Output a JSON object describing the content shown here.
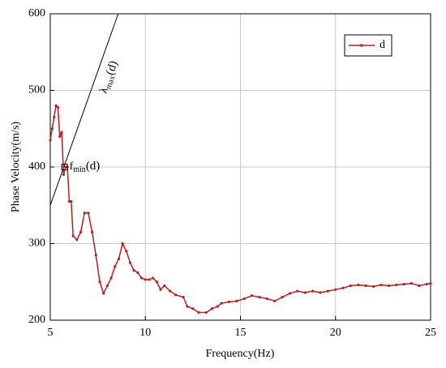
{
  "chart_data": {
    "type": "line",
    "x_label": "Frequency(Hz)",
    "y_label": "Phase Velocity(m/s)",
    "xlim": [
      5,
      25
    ],
    "xticks": [
      5,
      10,
      15,
      20,
      25
    ],
    "ylim": [
      200,
      600
    ],
    "yticks": [
      200,
      300,
      400,
      500,
      600
    ],
    "grid": true,
    "legend": "upper right",
    "x": [
      5.0,
      5.1,
      5.2,
      5.3,
      5.4,
      5.5,
      5.6,
      5.7,
      5.8,
      5.9,
      6.0,
      6.1,
      6.2,
      6.4,
      6.6,
      6.8,
      7.0,
      7.2,
      7.4,
      7.6,
      7.8,
      8.0,
      8.2,
      8.4,
      8.6,
      8.8,
      9.0,
      9.2,
      9.4,
      9.6,
      9.8,
      10.0,
      10.2,
      10.4,
      10.6,
      10.8,
      11.0,
      11.3,
      11.6,
      12.0,
      12.2,
      12.5,
      12.8,
      13.2,
      13.5,
      13.8,
      14.0,
      14.4,
      14.8,
      15.2,
      15.6,
      16.0,
      16.4,
      16.8,
      17.2,
      17.6,
      18.0,
      18.4,
      18.8,
      19.2,
      19.6,
      20.0,
      20.4,
      20.8,
      21.2,
      21.6,
      22.0,
      22.4,
      22.8,
      23.2,
      23.6,
      24.0,
      24.4,
      24.8,
      25.0
    ],
    "series": [
      {
        "name": "d",
        "color": "#b22222",
        "values": [
          435,
          450,
          465,
          480,
          478,
          440,
          445,
          390,
          400,
          400,
          355,
          355,
          310,
          305,
          315,
          340,
          340,
          315,
          285,
          250,
          235,
          245,
          255,
          270,
          280,
          300,
          290,
          275,
          265,
          262,
          255,
          253,
          253,
          255,
          250,
          240,
          245,
          238,
          233,
          230,
          218,
          215,
          210,
          210,
          215,
          218,
          222,
          224,
          225,
          228,
          232,
          230,
          228,
          225,
          230,
          235,
          238,
          236,
          238,
          236,
          238,
          240,
          242,
          245,
          246,
          245,
          244,
          246,
          245,
          246,
          247,
          248,
          245,
          247,
          248
        ]
      }
    ],
    "reference_line": {
      "x": [
        5,
        8.57
      ],
      "values": [
        350,
        600
      ],
      "color": "#000000",
      "label": {
        "base": "λ",
        "sub": "max",
        "tail": "(d)"
      }
    },
    "marker_point": {
      "x": 5.75,
      "y": 400,
      "label": {
        "base": "f",
        "sub": "min",
        "tail": "(d)"
      }
    }
  }
}
